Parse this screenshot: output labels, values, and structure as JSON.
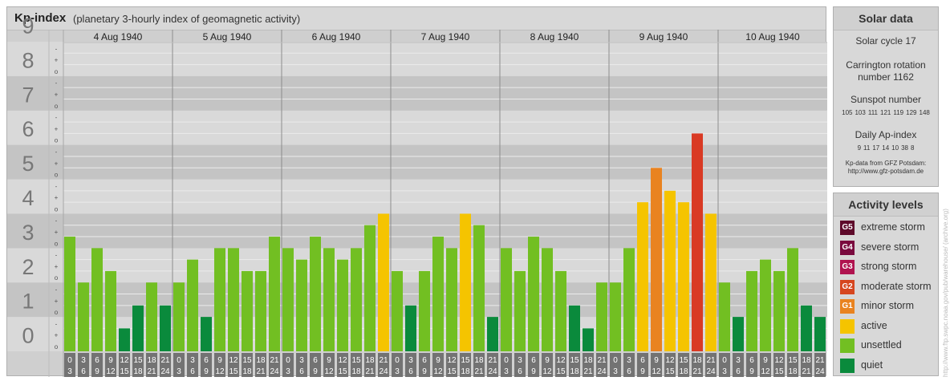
{
  "header": {
    "title": "Kp-index",
    "subtitle": "(planetary 3-hourly index of geomagnetic activity)"
  },
  "chart_data": {
    "type": "bar",
    "ylim": [
      0,
      9
    ],
    "y_ticks": [
      "0",
      "1",
      "2",
      "3",
      "4",
      "5",
      "6",
      "7",
      "8",
      "9"
    ],
    "minor_tick_labels": [
      "o",
      "+",
      "-"
    ],
    "days": [
      "4 Aug 1940",
      "5 Aug 1940",
      "6 Aug 1940",
      "7 Aug 1940",
      "8 Aug 1940",
      "9 Aug 1940",
      "10 Aug 1940"
    ],
    "interval_start_labels": [
      "0",
      "3",
      "6",
      "9",
      "12",
      "15",
      "18",
      "21"
    ],
    "interval_end_labels": [
      "3",
      "6",
      "9",
      "12",
      "15",
      "18",
      "21",
      "24"
    ],
    "values": [
      [
        3.333,
        2.0,
        3.0,
        2.333,
        0.667,
        1.333,
        2.0,
        1.333
      ],
      [
        2.0,
        2.667,
        1.0,
        3.0,
        3.0,
        2.333,
        2.333,
        3.333
      ],
      [
        3.0,
        2.667,
        3.333,
        3.0,
        2.667,
        3.0,
        3.667,
        4.0
      ],
      [
        2.333,
        1.333,
        2.333,
        3.333,
        3.0,
        4.0,
        3.667,
        1.0
      ],
      [
        3.0,
        2.333,
        3.333,
        3.0,
        2.333,
        1.333,
        0.667,
        2.0
      ],
      [
        2.0,
        3.0,
        4.333,
        5.333,
        4.667,
        4.333,
        6.333,
        4.0
      ],
      [
        2.0,
        1.0,
        2.333,
        2.667,
        2.333,
        3.0,
        1.333,
        1.0
      ]
    ],
    "grid": true,
    "level_colors": {
      "quiet": "#0a8a3c",
      "unsettled": "#72bf22",
      "active": "#f5c400",
      "G1": "#e98320",
      "G2": "#e27a16",
      "G3": "#d91f3a",
      "G4": "#a31049",
      "G5": "#5e0a2a",
      "bar_peak": "#d93a24"
    }
  },
  "solar": {
    "heading": "Solar data",
    "cycle": "Solar cycle 17",
    "carrington_line1": "Carrington rotation",
    "carrington_line2": "number 1162",
    "sunspot_label": "Sunspot number",
    "sunspot_values": [
      "105",
      "103",
      "111",
      "121",
      "119",
      "129",
      "148"
    ],
    "ap_label": "Daily Ap-index",
    "ap_values": [
      "9",
      "11",
      "17",
      "14",
      "10",
      "38",
      "8"
    ],
    "credit_line1": "Kp-data from GFZ Potsdam:",
    "credit_line2": "http://www.gfz-potsdam.de"
  },
  "activity": {
    "heading": "Activity levels",
    "items": [
      {
        "code": "G5",
        "label": "extreme storm",
        "color": "#5e0a2a"
      },
      {
        "code": "G4",
        "label": "severe storm",
        "color": "#7a0a3e"
      },
      {
        "code": "G3",
        "label": "strong storm",
        "color": "#b0134f"
      },
      {
        "code": "G2",
        "label": "moderate storm",
        "color": "#d6461f"
      },
      {
        "code": "G1",
        "label": "minor storm",
        "color": "#e98320"
      },
      {
        "code": "",
        "label": "active",
        "color": "#f5c400"
      },
      {
        "code": "",
        "label": "unsettled",
        "color": "#72bf22"
      },
      {
        "code": "",
        "label": "quiet",
        "color": "#0a8a3c"
      }
    ]
  },
  "watermark": "http://www.ftp.swpc.noaa.gov/pub/warehouse/ (archive.org)"
}
